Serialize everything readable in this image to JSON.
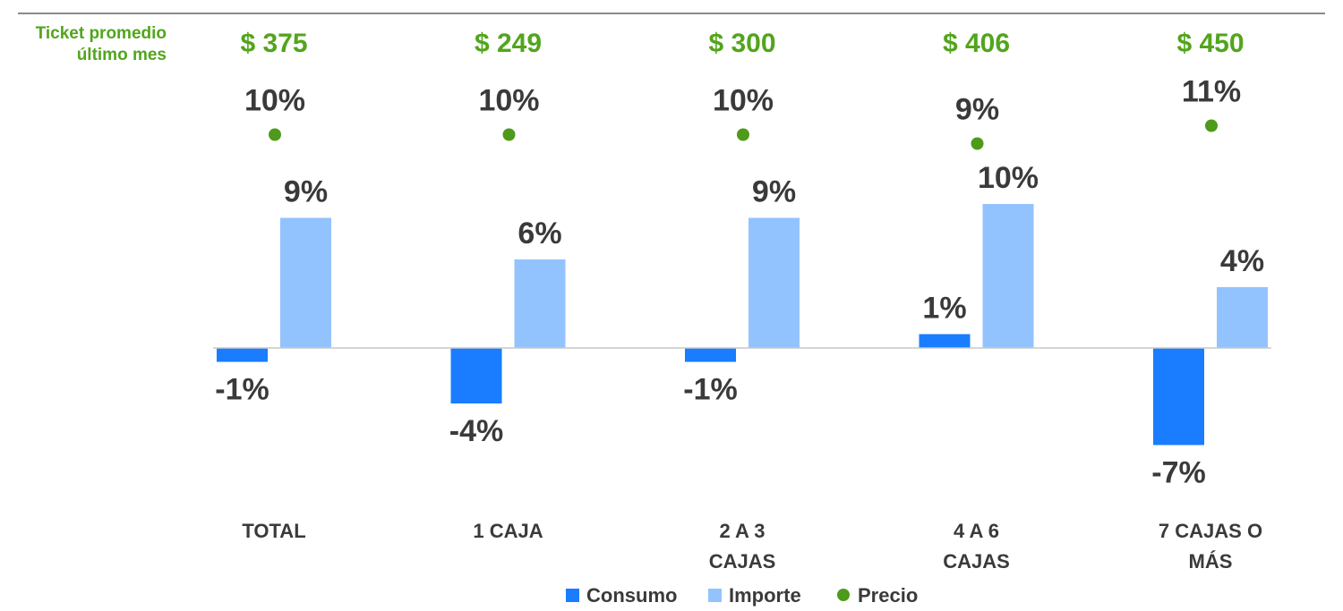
{
  "ticket_label": {
    "line1": "Ticket promedio",
    "line2": "último mes"
  },
  "colors": {
    "consumo": "#1a7cff",
    "importe": "#93c3ff",
    "precio": "#4e9a1a",
    "text": "#3a3a3a",
    "ticket_text": "#52a51c",
    "axis": "#c8c8c8"
  },
  "chart_data": {
    "type": "bar",
    "categories": [
      [
        "TOTAL"
      ],
      [
        "1 CAJA"
      ],
      [
        "2 A 3",
        "CAJAS"
      ],
      [
        "4 A 6",
        "CAJAS"
      ],
      [
        "7 CAJAS O",
        "MÁS"
      ]
    ],
    "ticket": [
      "$ 375",
      "$ 249",
      "$ 300",
      "$ 406",
      "$ 450"
    ],
    "series": [
      {
        "name": "Consumo",
        "type": "bar",
        "values": [
          -1,
          -4,
          -1,
          1,
          -7
        ],
        "labels": [
          "-1%",
          "-4%",
          "-1%",
          "1%",
          "-7%"
        ]
      },
      {
        "name": "Importe",
        "type": "bar",
        "values": [
          9,
          6,
          9,
          10,
          4
        ],
        "labels": [
          "9%",
          "6%",
          "9%",
          "10%",
          "4%"
        ]
      },
      {
        "name": "Precio",
        "type": "scatter",
        "values": [
          10,
          10,
          10,
          9,
          11
        ],
        "labels": [
          "10%",
          "10%",
          "10%",
          "9%",
          "11%"
        ]
      }
    ],
    "legend": {
      "position": "bottom",
      "items": [
        "Consumo",
        "Importe",
        "Precio"
      ]
    },
    "grid": false
  }
}
